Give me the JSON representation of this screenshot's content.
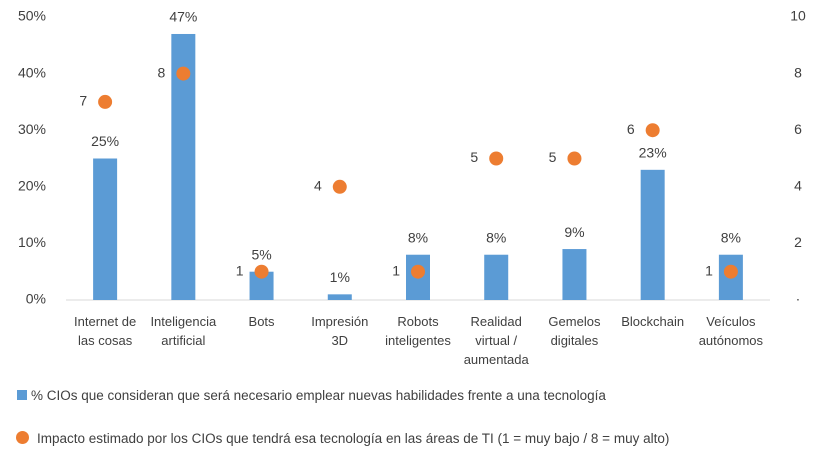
{
  "chart_data": {
    "type": "bar",
    "categories": [
      "Internet de\nlas cosas",
      "Inteligencia\nartificial",
      "Bots",
      "Impresión\n3D",
      "Robots\ninteligentes",
      "Realidad\nvirtual /\naumentada",
      "Gemelos\ndigitales",
      "Blockchain",
      "Veículos\nautónomos"
    ],
    "series": [
      {
        "name": "% CIOs que consideran que será necesario emplear nuevas habilidades frente a una tecnología",
        "type": "bar",
        "color": "#5b9bd5",
        "values": [
          25,
          47,
          5,
          1,
          8,
          8,
          9,
          23,
          8
        ],
        "value_labels": [
          "25%",
          "47%",
          "5%",
          "1%",
          "8%",
          "8%",
          "9%",
          "23%",
          "8%"
        ]
      },
      {
        "name": "Impacto estimado por los CIOs que tendrá esa tecnología en las áreas de TI (1 = muy bajo / 8 = muy alto)",
        "type": "scatter",
        "axis": "y2",
        "color": "#ed7d31",
        "values": [
          7,
          8,
          1,
          4,
          1,
          5,
          5,
          6,
          1
        ]
      }
    ],
    "ylim": [
      0,
      50
    ],
    "yticks": [
      {
        "value": 0,
        "label": "0%"
      },
      {
        "value": 10,
        "label": "10%"
      },
      {
        "value": 20,
        "label": "20%"
      },
      {
        "value": 30,
        "label": "30%"
      },
      {
        "value": 40,
        "label": "40%"
      },
      {
        "value": 50,
        "label": "50%"
      }
    ],
    "y2lim": [
      0,
      10
    ],
    "y2ticks": [
      {
        "value": 0,
        "label": "·"
      },
      2,
      4,
      6,
      8,
      10
    ],
    "grid": false,
    "legend": "bottom"
  }
}
